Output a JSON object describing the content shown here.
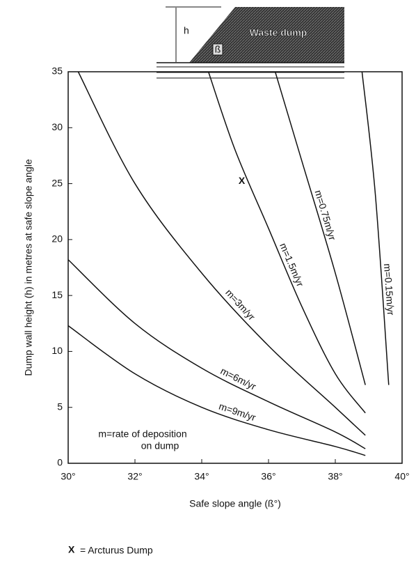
{
  "diagram": {
    "height_label": "h",
    "angle_label": "ß",
    "dump_label": "Waste dump"
  },
  "chart_data": {
    "type": "line",
    "ylabel": "Dump wall height (h) in metres at safe slope angle",
    "xlabel": "Safe slope angle (ß°)",
    "xlim": [
      30,
      40
    ],
    "xticks": [
      {
        "value": 30,
        "label": "30°"
      },
      {
        "value": 32,
        "label": "32°"
      },
      {
        "value": 34,
        "label": "34°"
      },
      {
        "value": 36,
        "label": "36°"
      },
      {
        "value": 38,
        "label": "38°"
      },
      {
        "value": 40,
        "label": "40°"
      }
    ],
    "ylim": [
      0,
      35
    ],
    "yticks": [
      0,
      5,
      10,
      15,
      20,
      25,
      30,
      35
    ],
    "series": [
      {
        "name": "m=9m/yr",
        "color": "#111111",
        "x": [
          30,
          32,
          34,
          36,
          38,
          38.9
        ],
        "values": [
          12.3,
          8,
          5,
          3,
          1.5,
          0.7
        ]
      },
      {
        "name": "m=6m/yr",
        "color": "#111111",
        "x": [
          30,
          32,
          34,
          36,
          38,
          38.9
        ],
        "values": [
          18.2,
          12.5,
          8.5,
          5.5,
          2.8,
          1.3
        ]
      },
      {
        "name": "m=3m/yr",
        "color": "#111111",
        "x": [
          30.3,
          32,
          34,
          36,
          38,
          38.9
        ],
        "values": [
          35,
          25,
          17,
          10.5,
          5,
          2.5
        ]
      },
      {
        "name": "m=1.5m/yr",
        "color": "#111111",
        "x": [
          34.2,
          35,
          36,
          37,
          38,
          38.9
        ],
        "values": [
          35,
          28,
          21,
          14,
          8,
          4.5
        ]
      },
      {
        "name": "m=0.75m/yr",
        "color": "#111111",
        "x": [
          36.2,
          37,
          38,
          38.9
        ],
        "values": [
          35,
          27,
          17,
          7
        ]
      },
      {
        "name": "m=0.15m/yr",
        "color": "#111111",
        "x": [
          38.8,
          39.2,
          39.6
        ],
        "values": [
          35,
          24,
          7
        ]
      }
    ],
    "annotation": [
      "m=rate of deposition",
      "on dump"
    ],
    "marker": {
      "label": "X",
      "x": 35.2,
      "y": 25.2
    },
    "footnote": {
      "symbol": "X",
      "text": "= Arcturus Dump"
    }
  }
}
